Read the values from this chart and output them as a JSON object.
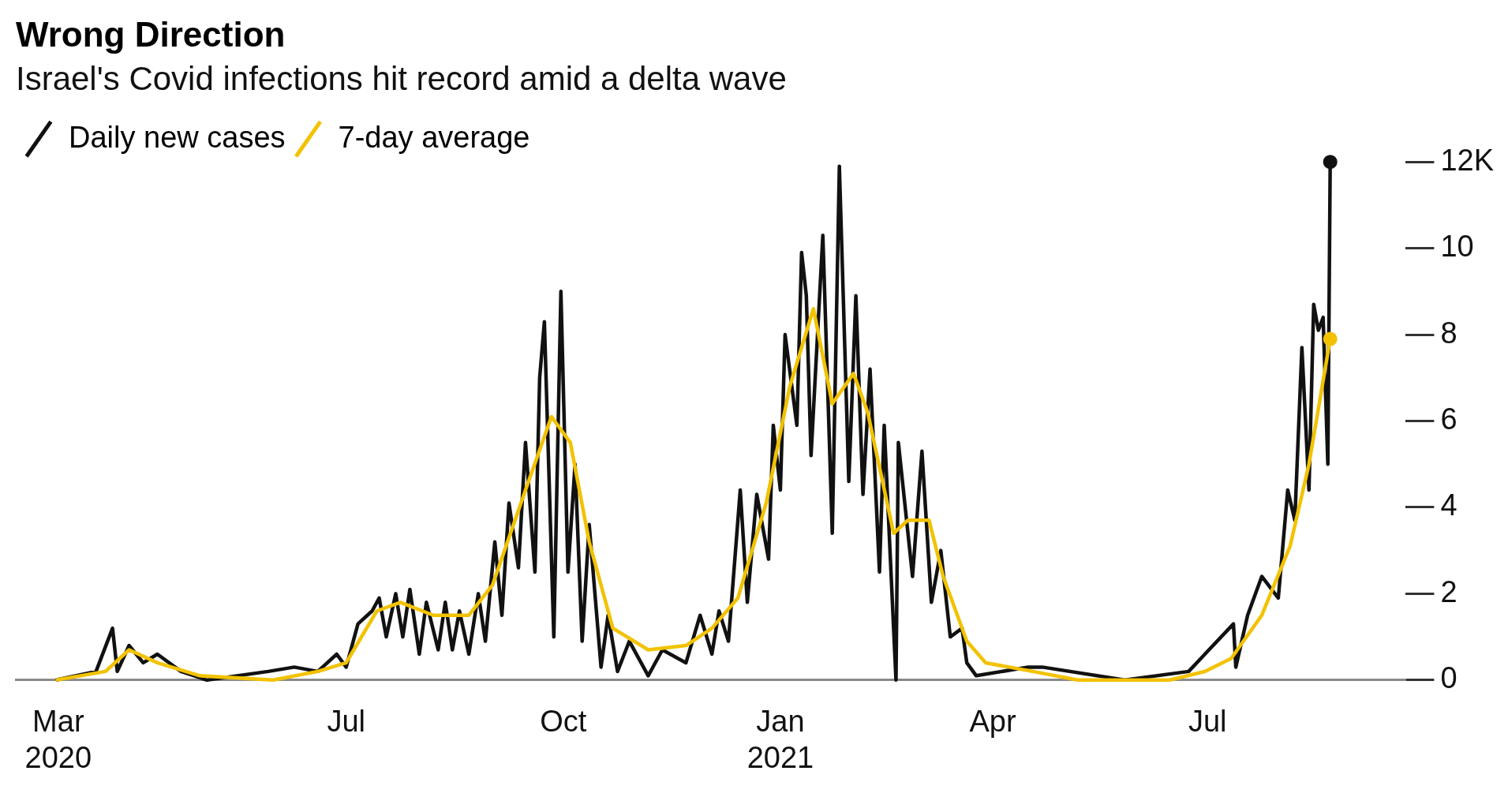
{
  "chart_data": {
    "type": "line",
    "title": "Wrong Direction",
    "subtitle": "Israel's Covid infections hit record amid a delta wave",
    "legend": "top left",
    "xlim": [
      "2020-02-12",
      "2021-09-23"
    ],
    "xticks": [
      {
        "value": "2020-03-01",
        "label": "Mar 2020"
      },
      {
        "value": "2020-07-01",
        "label": "Jul"
      },
      {
        "value": "2020-10-01",
        "label": "Oct"
      },
      {
        "value": "2021-01-01",
        "label": "Jan 2021"
      },
      {
        "value": "2021-04-01",
        "label": "Apr"
      },
      {
        "value": "2021-07-01",
        "label": "Jul"
      }
    ],
    "ylim": [
      0,
      12
    ],
    "yticks": [
      0,
      2,
      4,
      6,
      8,
      10,
      {
        "value": 12,
        "label": "12K"
      }
    ],
    "series": [
      {
        "name": "Daily new cases",
        "color": "#111111",
        "x": [
          "2020-02-29",
          "2020-03-17",
          "2020-03-24",
          "2020-03-26",
          "2020-03-31",
          "2020-04-06",
          "2020-04-12",
          "2020-04-22",
          "2020-05-03",
          "2020-05-29",
          "2020-06-09",
          "2020-06-19",
          "2020-06-27",
          "2020-07-01",
          "2020-07-06",
          "2020-07-12",
          "2020-07-15",
          "2020-07-18",
          "2020-07-22",
          "2020-07-25",
          "2020-07-28",
          "2020-08-01",
          "2020-08-04",
          "2020-08-09",
          "2020-08-12",
          "2020-08-15",
          "2020-08-18",
          "2020-08-22",
          "2020-08-26",
          "2020-08-29",
          "2020-09-02",
          "2020-09-05",
          "2020-09-08",
          "2020-09-12",
          "2020-09-15",
          "2020-09-19",
          "2020-09-21",
          "2020-09-23",
          "2020-09-27",
          "2020-09-30",
          "2020-10-03",
          "2020-10-06",
          "2020-10-09",
          "2020-10-12",
          "2020-10-17",
          "2020-10-20",
          "2020-10-24",
          "2020-10-29",
          "2020-11-06",
          "2020-11-12",
          "2020-11-22",
          "2020-11-28",
          "2020-12-03",
          "2020-12-06",
          "2020-12-10",
          "2020-12-15",
          "2020-12-18",
          "2020-12-22",
          "2020-12-27",
          "2020-12-29",
          "2021-01-01",
          "2021-01-03",
          "2021-01-08",
          "2021-01-10",
          "2021-01-12",
          "2021-01-14",
          "2021-01-19",
          "2021-01-23",
          "2021-01-26",
          "2021-01-30",
          "2021-02-02",
          "2021-02-05",
          "2021-02-08",
          "2021-02-12",
          "2021-02-14",
          "2021-02-19",
          "2021-02-20",
          "2021-02-26",
          "2021-03-02",
          "2021-03-06",
          "2021-03-10",
          "2021-03-14",
          "2021-03-19",
          "2021-03-21",
          "2021-03-25",
          "2021-04-16",
          "2021-04-22",
          "2021-05-27",
          "2021-06-23",
          "2021-07-12",
          "2021-07-13",
          "2021-07-18",
          "2021-07-24",
          "2021-07-31",
          "2021-08-04",
          "2021-08-07",
          "2021-08-10",
          "2021-08-13",
          "2021-08-15",
          "2021-08-17",
          "2021-08-19",
          "2021-08-21",
          "2021-08-22"
        ],
        "values": [
          0,
          0.2,
          1.2,
          0.2,
          0.8,
          0.4,
          0.6,
          0.2,
          0,
          0.2,
          0.3,
          0.2,
          0.6,
          0.3,
          1.3,
          1.6,
          1.9,
          1.0,
          2.0,
          1.0,
          2.1,
          0.6,
          1.8,
          0.7,
          1.8,
          0.7,
          1.6,
          0.6,
          2.0,
          0.9,
          3.2,
          1.5,
          4.1,
          2.6,
          5.5,
          2.5,
          7.0,
          8.3,
          1.0,
          9.0,
          2.5,
          5.0,
          0.9,
          3.6,
          0.3,
          1.5,
          0.2,
          0.9,
          0.1,
          0.7,
          0.4,
          1.5,
          0.6,
          1.6,
          0.9,
          4.4,
          1.8,
          4.3,
          2.8,
          5.9,
          4.4,
          8.0,
          5.9,
          9.9,
          8.9,
          5.2,
          10.3,
          3.4,
          11.9,
          4.6,
          8.9,
          4.3,
          7.2,
          2.5,
          5.9,
          0,
          5.5,
          2.4,
          5.3,
          1.8,
          3.0,
          1.0,
          1.2,
          0.4,
          0.1,
          0.3,
          0.3,
          0,
          0.2,
          1.3,
          0.3,
          1.5,
          2.4,
          1.9,
          4.4,
          3.7,
          7.7,
          4.4,
          8.7,
          8.1,
          8.4,
          5.0,
          12
        ]
      },
      {
        "name": "7-day average",
        "color": "#f2c200",
        "x": [
          "2020-02-29",
          "2020-03-21",
          "2020-03-31",
          "2020-04-12",
          "2020-04-30",
          "2020-05-31",
          "2020-06-19",
          "2020-07-01",
          "2020-07-14",
          "2020-07-24",
          "2020-08-07",
          "2020-08-22",
          "2020-09-01",
          "2020-09-15",
          "2020-09-26",
          "2020-10-04",
          "2020-10-12",
          "2020-10-22",
          "2020-11-06",
          "2020-11-22",
          "2020-12-03",
          "2020-12-14",
          "2020-12-26",
          "2021-01-05",
          "2021-01-15",
          "2021-01-23",
          "2021-02-01",
          "2021-02-07",
          "2021-02-18",
          "2021-02-24",
          "2021-03-05",
          "2021-03-11",
          "2021-03-21",
          "2021-03-29",
          "2021-04-18",
          "2021-05-07",
          "2021-06-15",
          "2021-06-30",
          "2021-07-11",
          "2021-07-24",
          "2021-08-05",
          "2021-08-13",
          "2021-08-22"
        ],
        "values": [
          0,
          0.2,
          0.7,
          0.4,
          0.1,
          0,
          0.2,
          0.4,
          1.6,
          1.8,
          1.5,
          1.5,
          2.2,
          4.4,
          6.1,
          5.5,
          3.2,
          1.2,
          0.7,
          0.8,
          1.2,
          1.9,
          4.1,
          6.8,
          8.6,
          6.4,
          7.1,
          6.2,
          3.4,
          3.7,
          3.7,
          2.4,
          0.9,
          0.4,
          0.2,
          0,
          0,
          0.2,
          0.5,
          1.5,
          3.1,
          5.0,
          7.9
        ]
      }
    ]
  }
}
